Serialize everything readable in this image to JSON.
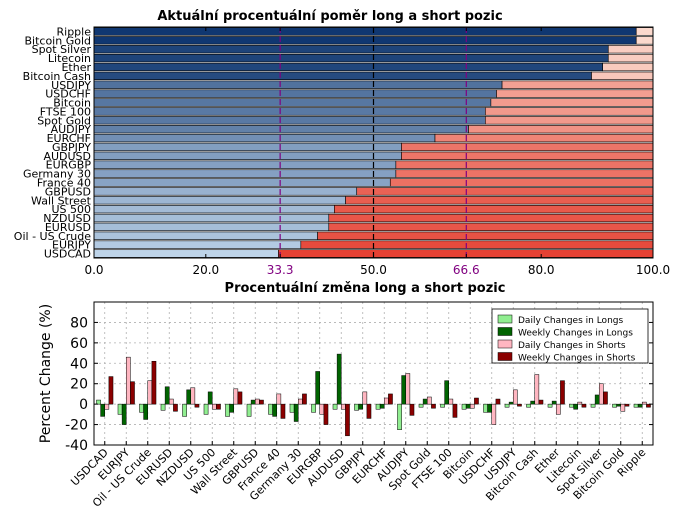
{
  "figure": {
    "top_title": "Aktuální procentuální poměr long a short pozic",
    "bottom_title": "Procentuální změna long a short pozic"
  },
  "chart_data": [
    {
      "type": "bar",
      "orientation": "horizontal",
      "stacked": true,
      "title": "Aktuální procentuální poměr long a short pozic",
      "xlim": [
        0,
        100
      ],
      "x_ticks": [
        0,
        20,
        33.3,
        50,
        66.6,
        80,
        100
      ],
      "x_tick_labels": [
        "0.0",
        "20.0",
        "33.3",
        "50.0",
        "66.6",
        "80.0",
        "100.0"
      ],
      "reference_lines": [
        {
          "x": 33.3,
          "style": "dashed",
          "color": "#800080"
        },
        {
          "x": 50,
          "style": "dashed",
          "color": "#000000"
        },
        {
          "x": 66.6,
          "style": "dashed",
          "color": "#800080"
        }
      ],
      "categories": [
        "USDCAD",
        "EURJPY",
        "Oil - US Crude",
        "EURUSD",
        "NZDUSD",
        "US 500",
        "Wall Street",
        "GBPUSD",
        "France 40",
        "Germany 30",
        "EURGBP",
        "AUDUSD",
        "GBPJPY",
        "EURCHF",
        "AUDJPY",
        "Spot Gold",
        "FTSE 100",
        "Bitcoin",
        "USDCHF",
        "USDJPY",
        "Bitcoin Cash",
        "Ether",
        "Litecoin",
        "Spot Silver",
        "Bitcoin Gold",
        "Ripple"
      ],
      "long_percent": [
        33,
        37,
        40,
        42,
        42,
        43,
        45,
        47,
        53,
        54,
        54,
        55,
        55,
        61,
        67,
        70,
        70,
        71,
        72,
        73,
        89,
        91,
        92,
        92,
        97,
        97
      ],
      "colors": {
        "long": "#2f77bb",
        "short": "#e5553f"
      }
    },
    {
      "type": "bar",
      "title": "Procentuální změna long a short pozic",
      "ylabel": "Percent Change (%)",
      "ylim": [
        -40,
        100
      ],
      "y_ticks": [
        -40,
        -20,
        0,
        20,
        40,
        60,
        80
      ],
      "grid": true,
      "legend_position": "top-right",
      "categories": [
        "USDCAD",
        "EURJPY",
        "Oil - US Crude",
        "EURUSD",
        "NZDUSD",
        "US 500",
        "Wall Street",
        "GBPUSD",
        "France 40",
        "Germany 30",
        "EURGBP",
        "AUDUSD",
        "GBPJPY",
        "EURCHF",
        "AUDJPY",
        "Spot Gold",
        "FTSE 100",
        "Bitcoin",
        "USDCHF",
        "USDJPY",
        "Bitcoin Cash",
        "Ether",
        "Litecoin",
        "Spot Silver",
        "Bitcoin Gold",
        "Ripple"
      ],
      "series": [
        {
          "name": "Daily Changes in Longs",
          "color": "#90ee90",
          "values": [
            4,
            -10,
            -8,
            -6,
            -12,
            -10,
            -12,
            -12,
            -10,
            -8,
            -8,
            -5,
            -6,
            -5,
            -25,
            -3,
            -3,
            -5,
            -8,
            -3,
            -3,
            -3,
            -3,
            -3,
            -3,
            -3
          ]
        },
        {
          "name": "Weekly Changes in Longs",
          "color": "#006400",
          "values": [
            -12,
            -20,
            -15,
            17,
            14,
            12,
            -8,
            4,
            -12,
            -17,
            32,
            49,
            -5,
            -4,
            28,
            5,
            23,
            -4,
            -8,
            2,
            3,
            3,
            -5,
            9,
            -2,
            -3
          ]
        },
        {
          "name": "Daily Changes in Shorts",
          "color": "#ffb6c1",
          "values": [
            -5,
            46,
            23,
            5,
            16,
            -5,
            15,
            5,
            10,
            5,
            -10,
            -5,
            12,
            6,
            30,
            7,
            5,
            -4,
            -20,
            14,
            29,
            -10,
            2,
            20,
            -7,
            2
          ]
        },
        {
          "name": "Weekly Changes in Shorts",
          "color": "#8b0000",
          "values": [
            27,
            22,
            42,
            -7,
            -3,
            -5,
            12,
            4,
            -14,
            10,
            -20,
            -31,
            -14,
            10,
            -11,
            -4,
            -13,
            6,
            5,
            -2,
            4,
            23,
            -3,
            12,
            -2,
            -3
          ]
        }
      ]
    }
  ]
}
